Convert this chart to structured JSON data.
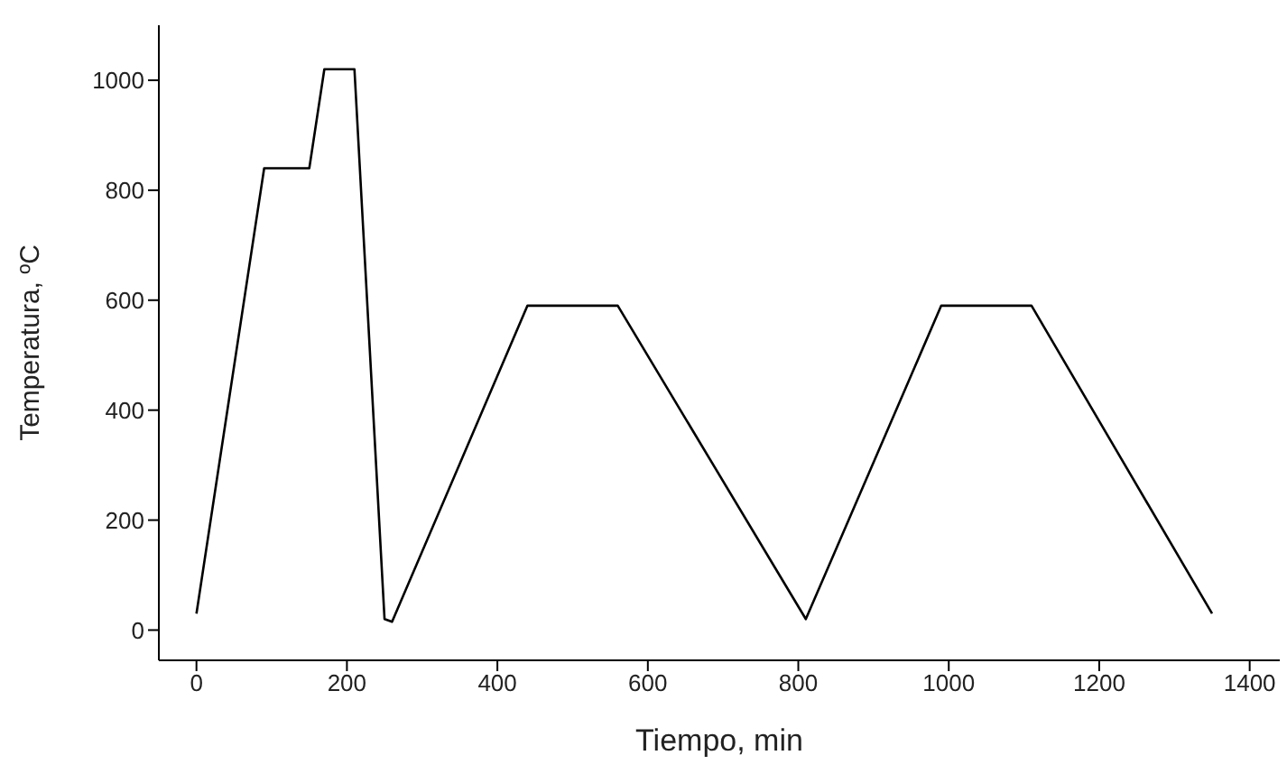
{
  "chart_data": {
    "type": "line",
    "xlabel": "Tiempo, min",
    "ylabel": "Temperatura, ºC",
    "x": [
      0,
      90,
      150,
      170,
      210,
      250,
      260,
      440,
      560,
      810,
      990,
      1110,
      1350
    ],
    "series": [
      {
        "color": "#000000",
        "values": [
          30,
          840,
          840,
          1020,
          1020,
          20,
          15,
          590,
          590,
          20,
          590,
          590,
          30
        ]
      }
    ],
    "xlim": [
      -50,
      1440
    ],
    "xticks": [
      0,
      200,
      400,
      600,
      800,
      1000,
      1200,
      1400
    ],
    "ylim": [
      -55,
      1100
    ],
    "yticks": [
      0,
      200,
      400,
      600,
      800,
      1000
    ],
    "marker": "none",
    "line_style": "solid"
  }
}
